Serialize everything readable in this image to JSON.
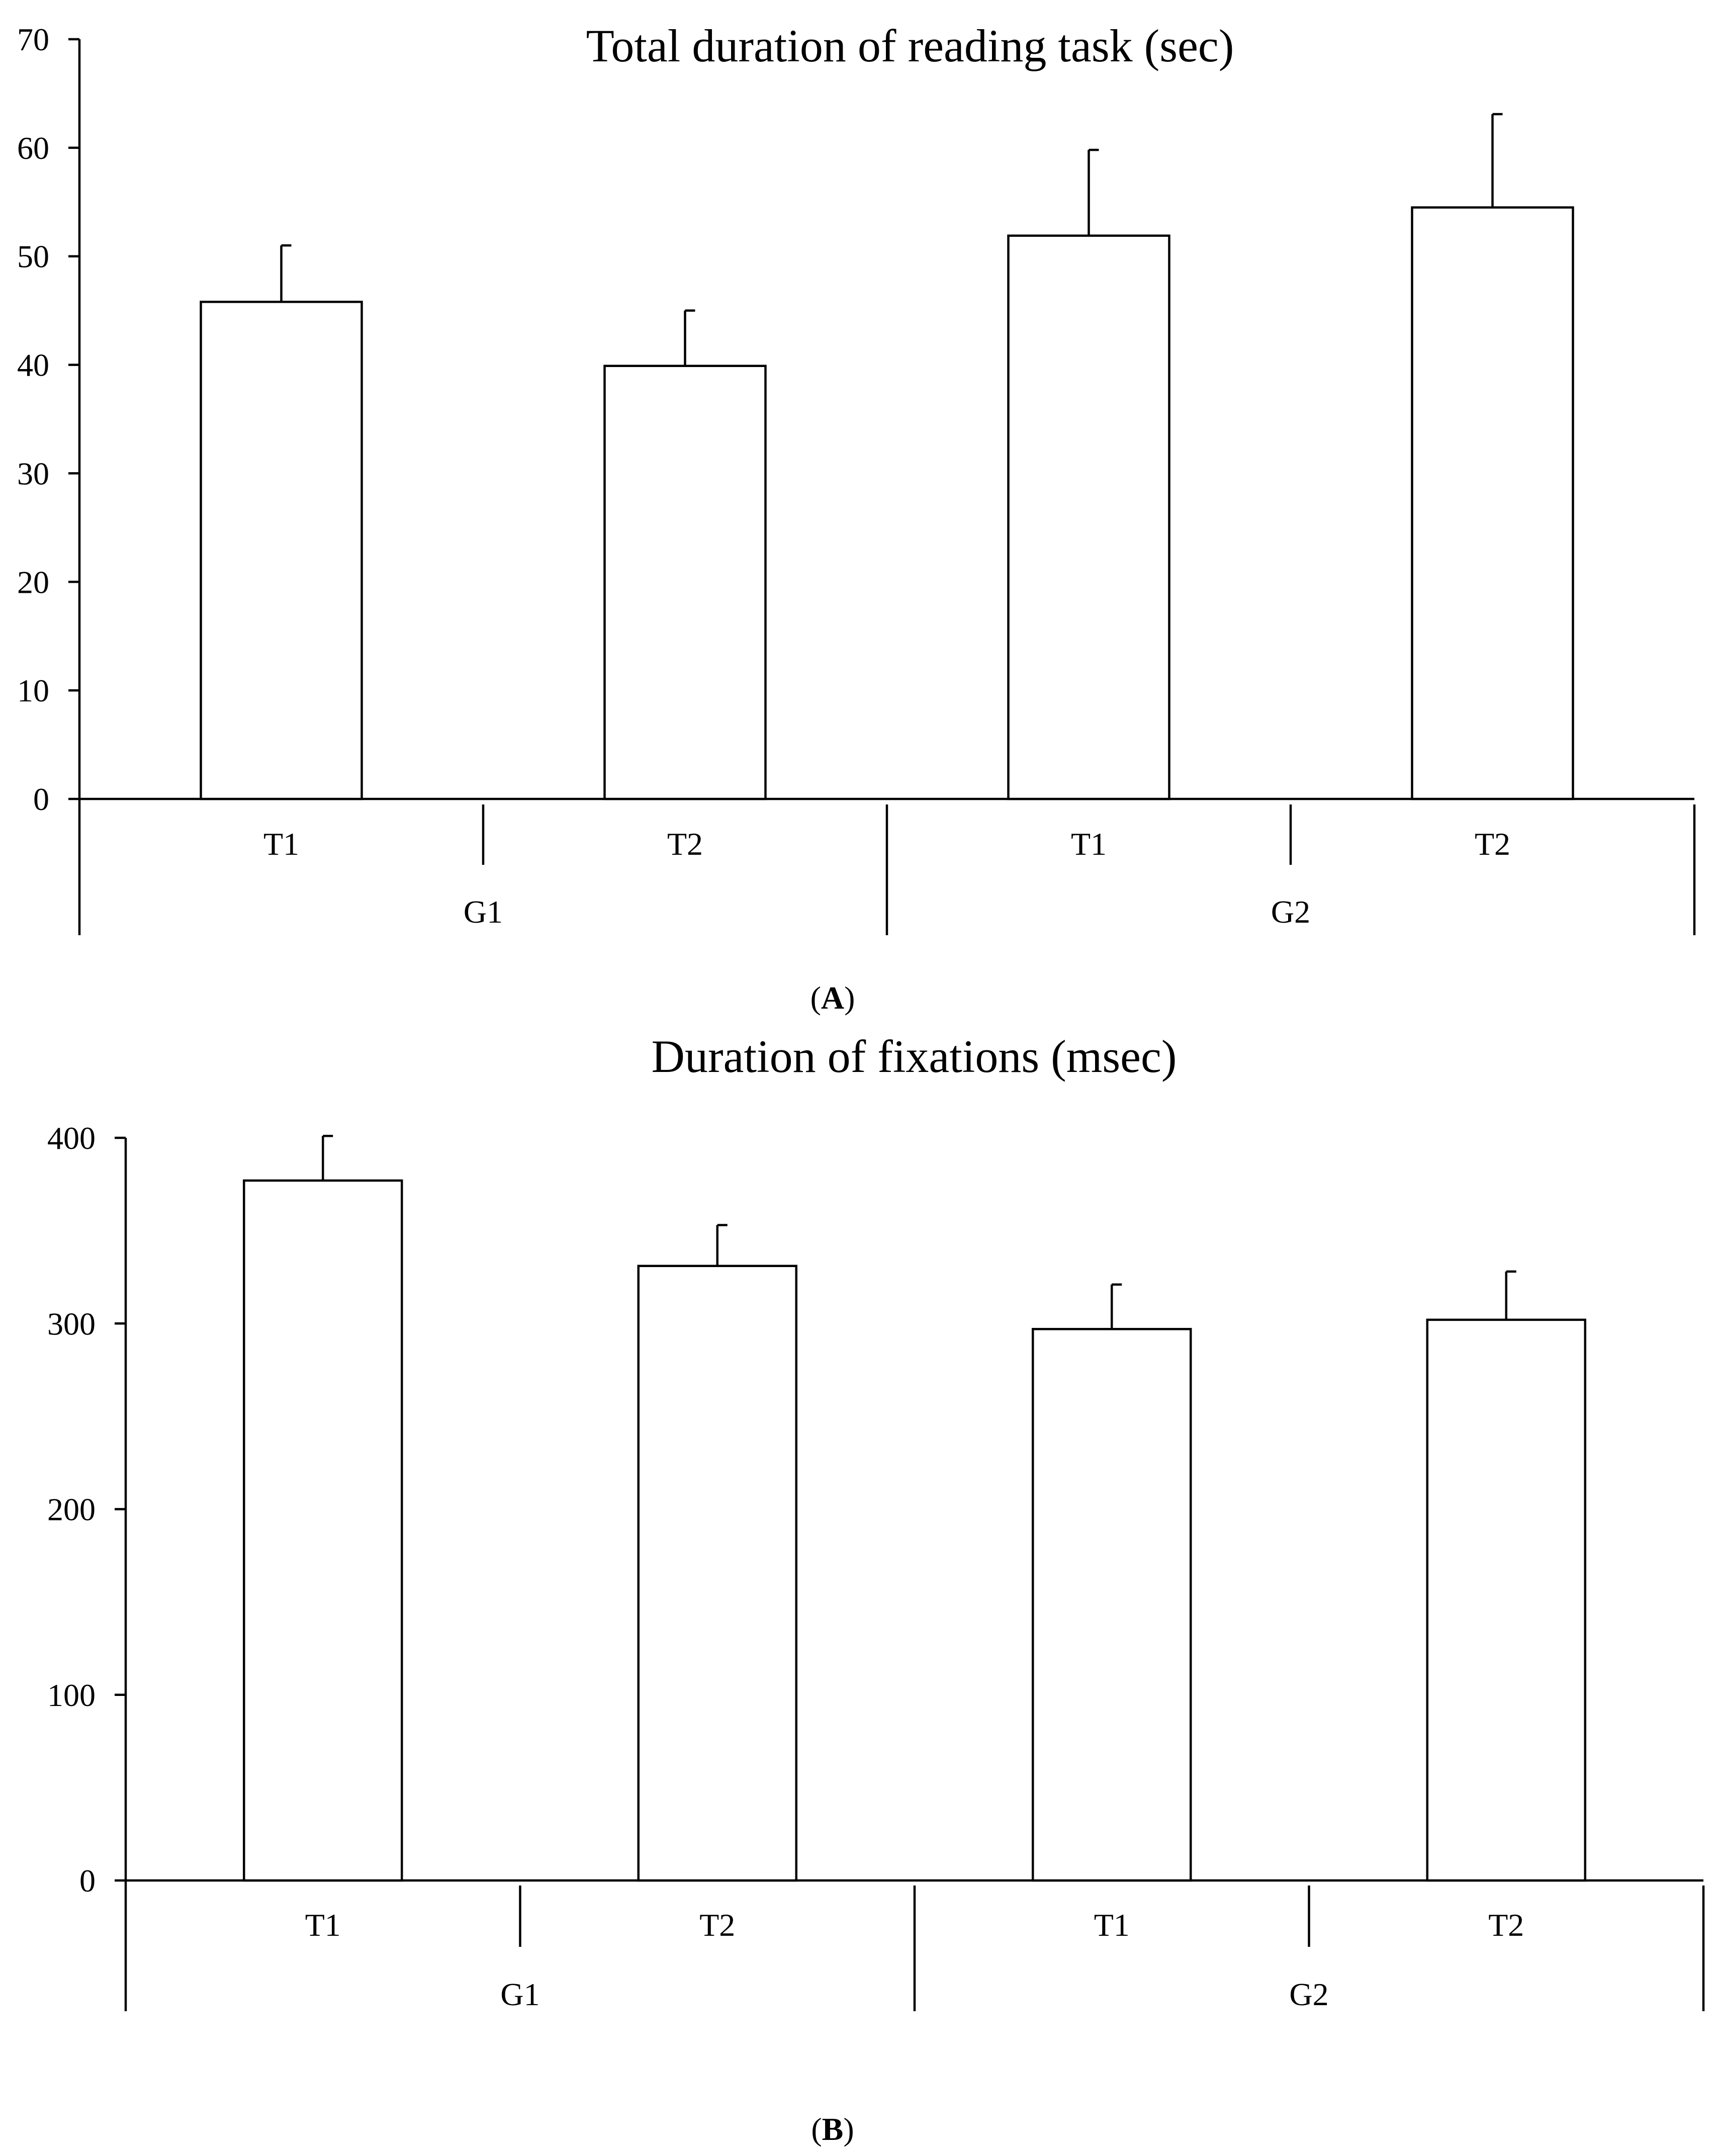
{
  "chart_data": [
    {
      "type": "bar",
      "panel": "A",
      "title": "Total duration of reading task (sec)",
      "groups": [
        {
          "name": "G1",
          "categories": [
            "T1",
            "T2"
          ]
        },
        {
          "name": "G2",
          "categories": [
            "T1",
            "T2"
          ]
        }
      ],
      "values": [
        45.8,
        39.9,
        51.9,
        54.5
      ],
      "errors": [
        5.2,
        5.1,
        7.9,
        8.6
      ],
      "ylim": [
        0,
        70
      ],
      "yticks": [
        "0",
        "10",
        "20",
        "30",
        "40",
        "50",
        "60",
        "70"
      ],
      "grid": false
    },
    {
      "type": "bar",
      "panel": "B",
      "title": "Duration of fixations (msec)",
      "groups": [
        {
          "name": "G1",
          "categories": [
            "T1",
            "T2"
          ]
        },
        {
          "name": "G2",
          "categories": [
            "T1",
            "T2"
          ]
        }
      ],
      "values": [
        377,
        331,
        297,
        302
      ],
      "errors": [
        24,
        22,
        24,
        26
      ],
      "ylim": [
        0,
        400
      ],
      "yticks": [
        "0",
        "100",
        "200",
        "300",
        "400"
      ],
      "grid": false
    }
  ],
  "panel_labels": [
    "A",
    "B"
  ]
}
